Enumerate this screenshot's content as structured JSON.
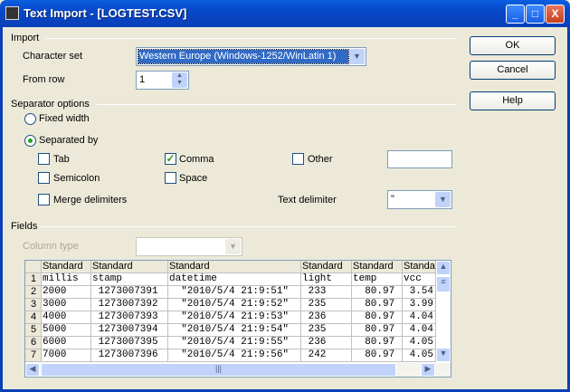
{
  "window": {
    "title": "Text Import - [LOGTEST.CSV]",
    "minimize": "_",
    "maximize": "□",
    "close": "X"
  },
  "buttons": {
    "ok": "OK",
    "cancel": "Cancel",
    "help": "Help"
  },
  "import": {
    "group": "Import",
    "charset_label": "Character set",
    "charset_value": "Western Europe (Windows-1252/WinLatin 1)",
    "from_row_label": "From row",
    "from_row_value": "1"
  },
  "separator": {
    "group": "Separator options",
    "fixed_width": "Fixed width",
    "separated_by": "Separated by",
    "selected": "separated_by",
    "tab": {
      "label": "Tab",
      "checked": false
    },
    "comma": {
      "label": "Comma",
      "checked": true
    },
    "other": {
      "label": "Other",
      "checked": false,
      "value": ""
    },
    "semicolon": {
      "label": "Semicolon",
      "checked": false
    },
    "space": {
      "label": "Space",
      "checked": false
    },
    "merge": {
      "label": "Merge delimiters",
      "checked": false
    },
    "text_delim_label": "Text delimiter",
    "text_delim_value": "\""
  },
  "fields": {
    "group": "Fields",
    "column_type_label": "Column type",
    "column_type_value": "",
    "types": [
      "Standard",
      "Standard",
      "Standard",
      "Standard",
      "Standard",
      "Standa"
    ],
    "rows": [
      [
        "1",
        "millis",
        "stamp",
        "datetime",
        "light",
        "temp",
        "vcc"
      ],
      [
        "2",
        "2000",
        " 1273007391",
        "  \"2010/5/4 21:9:51\"",
        " 233",
        "  80.97",
        " 3.54"
      ],
      [
        "3",
        "3000",
        " 1273007392",
        "  \"2010/5/4 21:9:52\"",
        " 235",
        "  80.97",
        " 3.99"
      ],
      [
        "4",
        "4000",
        " 1273007393",
        "  \"2010/5/4 21:9:53\"",
        " 236",
        "  80.97",
        " 4.04"
      ],
      [
        "5",
        "5000",
        " 1273007394",
        "  \"2010/5/4 21:9:54\"",
        " 235",
        "  80.97",
        " 4.04"
      ],
      [
        "6",
        "6000",
        " 1273007395",
        "  \"2010/5/4 21:9:55\"",
        " 236",
        "  80.97",
        " 4.05"
      ],
      [
        "7",
        "7000",
        " 1273007396",
        "  \"2010/5/4 21:9:56\"",
        " 242",
        "  80.97",
        " 4.05"
      ]
    ]
  }
}
